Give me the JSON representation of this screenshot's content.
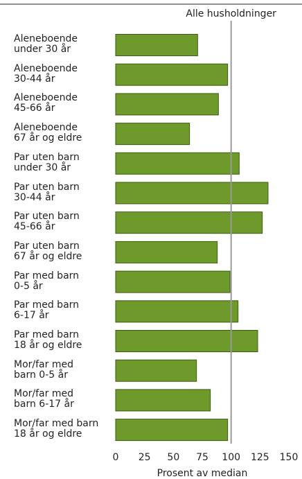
{
  "chart_data": {
    "type": "bar",
    "orientation": "horizontal",
    "categories": [
      "Aleneboende\nunder 30 år",
      "Aleneboende\n30-44 år",
      "Aleneboende\n45-66 år",
      "Aleneboende\n67 år og eldre",
      "Par uten barn\nunder 30 år",
      "Par uten barn\n30-44 år",
      "Par uten barn\n45-66 år",
      "Par uten barn\n67 år og eldre",
      "Par med barn\n0-5 år",
      "Par med barn\n6-17 år",
      "Par med barn\n18 år og eldre",
      "Mor/far med\nbarn 0-5 år",
      "Mor/far med\nbarn 6-17 år",
      "Mor/far med barn\n18 år og eldre"
    ],
    "values": [
      71,
      97,
      89,
      64,
      107,
      132,
      127,
      88,
      99,
      106,
      123,
      70,
      82,
      97
    ],
    "color": "#6e9a2c",
    "edge_color": "#3b5c12",
    "xlim": [
      0,
      150
    ],
    "xticks": [
      0,
      25,
      50,
      75,
      100,
      125,
      150
    ],
    "xlabel": "Prosent av median",
    "reference_line": {
      "value": 100,
      "label": "Alle husholdninger",
      "color": "#999999"
    }
  }
}
